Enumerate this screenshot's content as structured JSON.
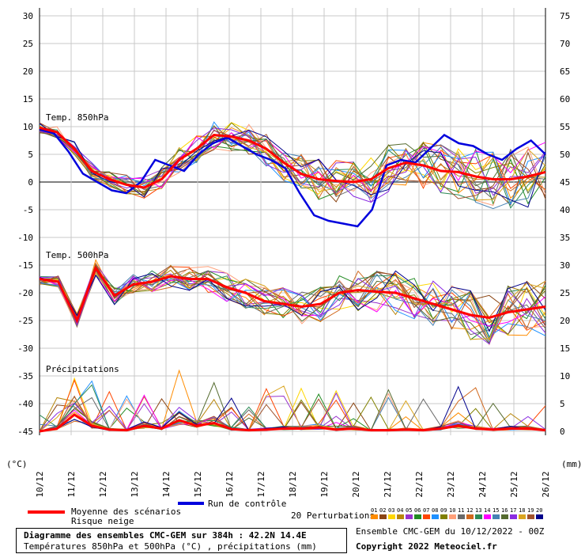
{
  "chart_data": {
    "type": "line",
    "panel_labels": {
      "temp850": "Temp. 850hPa",
      "temp500": "Temp. 500hPa",
      "precip": "Précipitations"
    },
    "y_left_ticks": [
      30,
      25,
      20,
      15,
      10,
      5,
      0,
      -5,
      -10,
      -15,
      -20,
      -25,
      -30,
      -35,
      -40,
      -45
    ],
    "y_right_ticks": [
      75,
      70,
      65,
      60,
      55,
      50,
      45,
      40,
      35,
      30,
      25,
      20,
      15,
      10,
      5,
      0
    ],
    "y_left_unit": "(°C)",
    "y_right_unit": "(mm)",
    "x_tick_labels": [
      "10/12",
      "11/12",
      "12/12",
      "13/12",
      "14/12",
      "15/12",
      "16/12",
      "17/12",
      "18/12",
      "19/12",
      "20/12",
      "21/12",
      "22/12",
      "23/12",
      "24/12",
      "25/12",
      "26/12"
    ],
    "ylim": [
      -45,
      30
    ],
    "series": [
      {
        "name": "Moyenne des scénarios",
        "color": "#ff0000",
        "t850": [
          9.8,
          9,
          6,
          2,
          0.5,
          -0.5,
          -1,
          0.5,
          4,
          6,
          8.5,
          8.2,
          7.5,
          6,
          3.5,
          1.5,
          0.5,
          0.2,
          0,
          0.5,
          2.5,
          3.5,
          3,
          2,
          1.8,
          1,
          0.5,
          0.5,
          1,
          1.8
        ],
        "t500": [
          -17.5,
          -18,
          -25,
          -15.5,
          -20.5,
          -18.5,
          -18,
          -17,
          -17.5,
          -17.5,
          -19,
          -20,
          -21.5,
          -22,
          -22.5,
          -22,
          -20,
          -19.5,
          -19.8,
          -20,
          -21,
          -22,
          -23,
          -24,
          -24.5,
          -23.5,
          -23,
          -22.5
        ],
        "precip": [
          0,
          0.5,
          3,
          1,
          0.3,
          0.2,
          1,
          0.5,
          2,
          1,
          1.5,
          0.4,
          0.2,
          0.3,
          0.5,
          0.5,
          0.7,
          0.3,
          0.5,
          0.2,
          0.2,
          0.3,
          0.2,
          0.5,
          1,
          0.5,
          0.3,
          0.5,
          0.5,
          0.2
        ]
      },
      {
        "name": "Run de contrôle",
        "color": "#0000dd",
        "t850": [
          9.5,
          8.8,
          5.5,
          1.5,
          0,
          -1.5,
          -2,
          0,
          4,
          3,
          2,
          5,
          7,
          8,
          6.5,
          5,
          4,
          2.5,
          -2,
          -6,
          -7,
          -7.5,
          -8,
          -5,
          3,
          4,
          3.5,
          6,
          8.5,
          7,
          6.5,
          5,
          4,
          6,
          7.5,
          5
        ]
      }
    ],
    "legend": {
      "mean_label": "Moyenne des scénarios",
      "snow_label": "Risque neige",
      "control_label": "Run de contrôle",
      "perturbations_label": "20 Perturbations",
      "perturbation_numbers": [
        "01",
        "02",
        "03",
        "04",
        "05",
        "06",
        "07",
        "08",
        "09",
        "10",
        "11",
        "12",
        "13",
        "14",
        "15",
        "16",
        "17",
        "18",
        "19",
        "20"
      ],
      "perturbation_colors": [
        "#ff8c00",
        "#8b4513",
        "#ffd700",
        "#b8860b",
        "#9932cc",
        "#228b22",
        "#ff4500",
        "#1e90ff",
        "#808000",
        "#ffa07a",
        "#696969",
        "#d2691e",
        "#2e8b57",
        "#ff00ff",
        "#4682b4",
        "#556b2f",
        "#8a2be2",
        "#daa520",
        "#a0522d",
        "#00008b"
      ]
    },
    "grid": true
  },
  "footer": {
    "title": "Diagramme des ensembles CMC-GEM sur 384h : 42.2N 14.4E",
    "subtitle": "Températures 850hPa et 500hPa (°C) , précipitations (mm)",
    "ensemble_info": "Ensemble CMC-GEM du 10/12/2022 - 00Z",
    "copyright": "Copyright 2022 Meteociel.fr"
  }
}
